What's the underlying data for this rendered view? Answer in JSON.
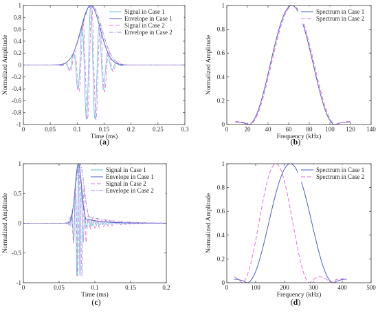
{
  "colors": {
    "cyan": "#5cc0dc",
    "blue": "#4b5bc8",
    "magenta": "#e070e0",
    "purple": "#9a8ad8",
    "grey": "#b0b0b0"
  },
  "chart_data": [
    {
      "id": "a",
      "type": "line",
      "panel_label": "a",
      "xlabel": "Time (ms)",
      "ylabel": "Normalized Amplitude",
      "xlim": [
        0,
        0.3
      ],
      "ylim": [
        -1,
        1
      ],
      "xticks": [
        0,
        0.05,
        0.1,
        0.15,
        0.2,
        0.25,
        0.3
      ],
      "xtick_labels": [
        "0",
        "0.05",
        "0.1",
        "0.15",
        "0.2",
        "0.25",
        "0.3"
      ],
      "yticks": [
        -1,
        -0.8,
        -0.6,
        -0.4,
        -0.2,
        0,
        0.2,
        0.4,
        0.6,
        0.8,
        1
      ],
      "ytick_labels": [
        "-1",
        "-0.8",
        "-0.6",
        "-0.4",
        "-0.2",
        "0",
        "0.2",
        "0.4",
        "0.6",
        "0.8",
        "1"
      ],
      "grid": false,
      "legend": "top-right",
      "series": [
        {
          "name": "Signal in Case 1",
          "color": "#5cc0dc",
          "dash": "solid",
          "kind": "osc",
          "center": 0.125,
          "width": 0.018,
          "freq": 62,
          "peak": 1.0,
          "tail": 0.0
        },
        {
          "name": "Envelope in Case 1",
          "color": "#4b5bc8",
          "dash": "solid",
          "kind": "env",
          "center": 0.125,
          "width": 0.018,
          "peak": 1.0,
          "tail": 0.0
        },
        {
          "name": "Signal in Case 2",
          "color": "#e070e0",
          "dash": "dash",
          "kind": "osc",
          "center": 0.127,
          "width": 0.019,
          "freq": 62,
          "peak": 1.0,
          "tail": 0.0
        },
        {
          "name": "Envelope in Case 2",
          "color": "#9a8ad8",
          "dash": "dashdot",
          "kind": "env",
          "center": 0.127,
          "width": 0.019,
          "peak": 1.0,
          "tail": 0.0
        }
      ]
    },
    {
      "id": "b",
      "type": "line",
      "panel_label": "b",
      "xlabel": "Frequency (kHz)",
      "ylabel": "Normalized Amplitude",
      "xlim": [
        0,
        140
      ],
      "ylim": [
        0,
        1
      ],
      "xticks": [
        0,
        20,
        40,
        60,
        80,
        100,
        120,
        140
      ],
      "xtick_labels": [
        "0",
        "20",
        "40",
        "60",
        "80",
        "100",
        "120",
        "140"
      ],
      "yticks": [
        0,
        0.2,
        0.4,
        0.6,
        0.8,
        1
      ],
      "ytick_labels": [
        "0",
        "0.2",
        "0.4",
        "0.6",
        "0.8",
        "1"
      ],
      "grid": false,
      "legend": "top-right",
      "series": [
        {
          "name": "Spectrum in Case 1",
          "color": "#4b5bc8",
          "dash": "solid",
          "kind": "spec",
          "center": 63,
          "halfwidth": 42,
          "side": 0.025,
          "xmin": 8,
          "xmax": 120
        },
        {
          "name": "Spectrum in Case 2",
          "color": "#e070e0",
          "dash": "dash",
          "kind": "spec",
          "center": 64,
          "halfwidth": 42,
          "side": 0.03,
          "xmin": 8,
          "xmax": 120
        }
      ]
    },
    {
      "id": "c",
      "type": "line",
      "panel_label": "c",
      "xlabel": "Time (ms)",
      "ylabel": "Normalized Amplitude",
      "xlim": [
        0,
        0.2
      ],
      "ylim": [
        -1,
        1
      ],
      "xticks": [
        0,
        0.05,
        0.1,
        0.15,
        0.2
      ],
      "xtick_labels": [
        "0",
        "0.05",
        "0.1",
        "0.15",
        "0.2"
      ],
      "yticks": [
        -1,
        -0.5,
        0,
        0.5,
        1
      ],
      "ytick_labels": [
        "-1",
        "-0.5",
        "0",
        "0.5",
        "1"
      ],
      "grid": false,
      "legend": "top-right",
      "series": [
        {
          "name": "Signal in Case 1",
          "color": "#5cc0dc",
          "dash": "solid",
          "kind": "osc",
          "center": 0.077,
          "width": 0.0045,
          "freq": 220,
          "peak": 1.0,
          "tail": 0.12
        },
        {
          "name": "Envelope in Case 1",
          "color": "#4b5bc8",
          "dash": "solid",
          "kind": "env",
          "center": 0.077,
          "width": 0.0045,
          "peak": 1.0,
          "tail": 0.12
        },
        {
          "name": "Signal in Case 2",
          "color": "#e070e0",
          "dash": "dash",
          "kind": "osc",
          "center": 0.079,
          "width": 0.006,
          "freq": 165,
          "peak": 1.0,
          "tail": 0.18
        },
        {
          "name": "Envelope in Case 2",
          "color": "#9a8ad8",
          "dash": "dashdot",
          "kind": "env",
          "center": 0.079,
          "width": 0.006,
          "peak": 1.0,
          "tail": 0.18
        }
      ]
    },
    {
      "id": "d",
      "type": "line",
      "panel_label": "d",
      "xlabel": "Frequency (kHz)",
      "ylabel": "Normalized Amplitude",
      "xlim": [
        0,
        500
      ],
      "ylim": [
        0,
        1
      ],
      "xticks": [
        0,
        100,
        200,
        300,
        400,
        500
      ],
      "xtick_labels": [
        "0",
        "100",
        "200",
        "300",
        "400",
        "500"
      ],
      "yticks": [
        0,
        0.2,
        0.4,
        0.6,
        0.8,
        1
      ],
      "ytick_labels": [
        "0",
        "0.2",
        "0.4",
        "0.6",
        "0.8",
        "1"
      ],
      "grid": false,
      "legend": "top-right",
      "series": [
        {
          "name": "Spectrum in Case 1",
          "color": "#4b5bc8",
          "dash": "solid",
          "kind": "spec",
          "center": 220,
          "halfwidth": 150,
          "side": 0.035,
          "xmin": 25,
          "xmax": 415
        },
        {
          "name": "Spectrum in Case 2",
          "color": "#e070e0",
          "dash": "dash",
          "kind": "spec",
          "center": 170,
          "halfwidth": 118,
          "side": 0.06,
          "xmin": 25,
          "xmax": 415
        }
      ]
    }
  ]
}
